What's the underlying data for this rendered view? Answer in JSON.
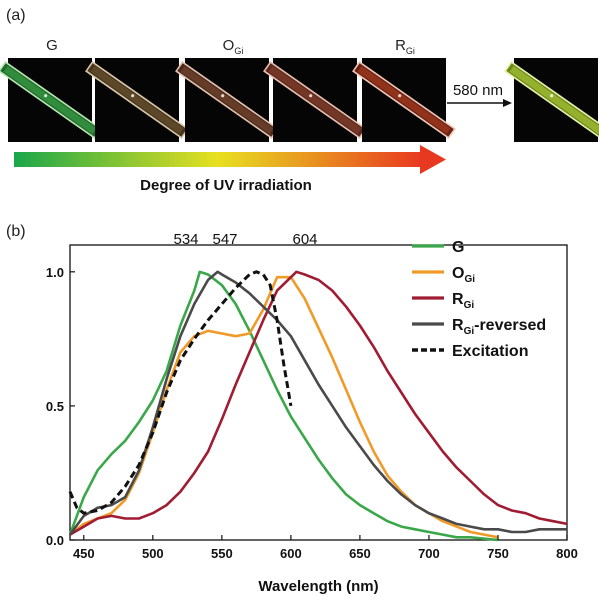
{
  "panel_a": {
    "label": "(a)",
    "samples": [
      {
        "name": "G",
        "base": "G",
        "sub": "",
        "fill": "#1f6a2a",
        "glow": "#3fa84c",
        "edge": "#b9e7b0"
      },
      {
        "name": "",
        "base": "",
        "sub": "",
        "fill": "#4a3420",
        "glow": "#6c5a30",
        "edge": "#d8c9a8"
      },
      {
        "name": "OGi",
        "base": "O",
        "sub": "Gi",
        "fill": "#4d2a1e",
        "glow": "#7a4a30",
        "edge": "#e2c4b0"
      },
      {
        "name": "",
        "base": "",
        "sub": "",
        "fill": "#5a2a1c",
        "glow": "#8a4030",
        "edge": "#e8c0b0"
      },
      {
        "name": "RGi",
        "base": "R",
        "sub": "Gi",
        "fill": "#6a2214",
        "glow": "#b04020",
        "edge": "#f0c8b8"
      }
    ],
    "after_sample": {
      "name": "",
      "fill": "#6a8a18",
      "glow": "#b8d040",
      "edge": "#e8f0b0"
    },
    "arrow_label": "580 nm",
    "gradient_caption": "Degree of UV irradiation",
    "gradient_colors": [
      "#1aa64a",
      "#e8e020",
      "#e83820"
    ]
  },
  "panel_b": {
    "label": "(b)",
    "peak_labels": [
      "534",
      "547",
      "604"
    ]
  },
  "chart_data": {
    "type": "line",
    "title": "",
    "xlabel": "Wavelength (nm)",
    "ylabel": "",
    "xlim": [
      440,
      800
    ],
    "ylim": [
      0,
      1.1
    ],
    "xticks": [
      450,
      500,
      550,
      600,
      650,
      700,
      750,
      800
    ],
    "yticks": [
      0.0,
      0.5,
      1.0
    ],
    "ytick_labels": [
      "0.0",
      "0.5",
      "1.0"
    ],
    "legend_position": "top-right",
    "series": [
      {
        "name": "G",
        "base": "G",
        "sub": "",
        "color": "#3aa84a",
        "dash": "solid",
        "x": [
          440,
          450,
          460,
          470,
          480,
          490,
          500,
          510,
          520,
          530,
          534,
          540,
          550,
          560,
          570,
          580,
          590,
          600,
          610,
          620,
          630,
          640,
          650,
          660,
          670,
          680,
          690,
          700,
          710,
          720,
          730,
          740,
          750
        ],
        "y": [
          0.02,
          0.16,
          0.26,
          0.32,
          0.37,
          0.44,
          0.52,
          0.63,
          0.8,
          0.93,
          1.0,
          0.99,
          0.95,
          0.88,
          0.78,
          0.67,
          0.56,
          0.46,
          0.38,
          0.3,
          0.23,
          0.17,
          0.13,
          0.1,
          0.07,
          0.05,
          0.04,
          0.03,
          0.02,
          0.01,
          0.01,
          0.005,
          0.0
        ]
      },
      {
        "name": "OGi",
        "base": "O",
        "sub": "Gi",
        "color": "#f09a28",
        "dash": "solid",
        "x": [
          440,
          450,
          460,
          470,
          480,
          490,
          500,
          510,
          520,
          530,
          540,
          550,
          560,
          570,
          580,
          590,
          600,
          610,
          620,
          630,
          640,
          650,
          660,
          670,
          680,
          690,
          700,
          710,
          720,
          730,
          740,
          750
        ],
        "y": [
          0.02,
          0.06,
          0.08,
          0.1,
          0.15,
          0.25,
          0.4,
          0.56,
          0.7,
          0.76,
          0.78,
          0.77,
          0.76,
          0.77,
          0.86,
          0.98,
          0.98,
          0.9,
          0.79,
          0.68,
          0.56,
          0.44,
          0.33,
          0.24,
          0.18,
          0.13,
          0.1,
          0.07,
          0.05,
          0.03,
          0.02,
          0.01
        ]
      },
      {
        "name": "RGi",
        "base": "R",
        "sub": "Gi",
        "color": "#a01c32",
        "dash": "solid",
        "x": [
          440,
          450,
          460,
          470,
          480,
          490,
          500,
          510,
          520,
          530,
          540,
          550,
          560,
          570,
          580,
          590,
          600,
          604,
          610,
          620,
          630,
          640,
          650,
          660,
          670,
          680,
          690,
          700,
          710,
          720,
          730,
          740,
          750,
          760,
          770,
          780,
          790,
          800
        ],
        "y": [
          0.02,
          0.05,
          0.08,
          0.09,
          0.08,
          0.08,
          0.1,
          0.13,
          0.18,
          0.25,
          0.33,
          0.45,
          0.58,
          0.7,
          0.82,
          0.93,
          0.98,
          1.0,
          0.99,
          0.97,
          0.93,
          0.87,
          0.8,
          0.72,
          0.63,
          0.55,
          0.47,
          0.4,
          0.33,
          0.27,
          0.22,
          0.17,
          0.13,
          0.11,
          0.1,
          0.08,
          0.07,
          0.06
        ]
      },
      {
        "name": "RGi-reversed",
        "base": "R",
        "sub": "Gi",
        "suffix": "-reversed",
        "color": "#4a4a4a",
        "dash": "solid",
        "x": [
          440,
          450,
          460,
          470,
          480,
          490,
          500,
          510,
          520,
          530,
          540,
          547,
          550,
          560,
          570,
          580,
          590,
          600,
          610,
          620,
          630,
          640,
          650,
          660,
          670,
          680,
          690,
          700,
          710,
          720,
          730,
          740,
          750,
          760,
          770,
          780,
          790,
          800
        ],
        "y": [
          0.02,
          0.09,
          0.12,
          0.13,
          0.16,
          0.26,
          0.42,
          0.6,
          0.76,
          0.88,
          0.97,
          1.0,
          0.99,
          0.96,
          0.92,
          0.87,
          0.82,
          0.76,
          0.67,
          0.58,
          0.5,
          0.42,
          0.35,
          0.28,
          0.22,
          0.17,
          0.13,
          0.1,
          0.08,
          0.06,
          0.05,
          0.04,
          0.04,
          0.03,
          0.03,
          0.04,
          0.04,
          0.04
        ]
      },
      {
        "name": "Excitation",
        "base": "Excitation",
        "sub": "",
        "color": "#111111",
        "dash": "dashed",
        "x": [
          440,
          445,
          450,
          460,
          470,
          480,
          490,
          500,
          510,
          520,
          530,
          540,
          550,
          560,
          570,
          575,
          580,
          585,
          590,
          595,
          600
        ],
        "y": [
          0.18,
          0.12,
          0.1,
          0.11,
          0.14,
          0.2,
          0.28,
          0.4,
          0.55,
          0.67,
          0.75,
          0.82,
          0.88,
          0.94,
          0.99,
          1.0,
          0.99,
          0.95,
          0.82,
          0.65,
          0.5
        ]
      }
    ]
  }
}
